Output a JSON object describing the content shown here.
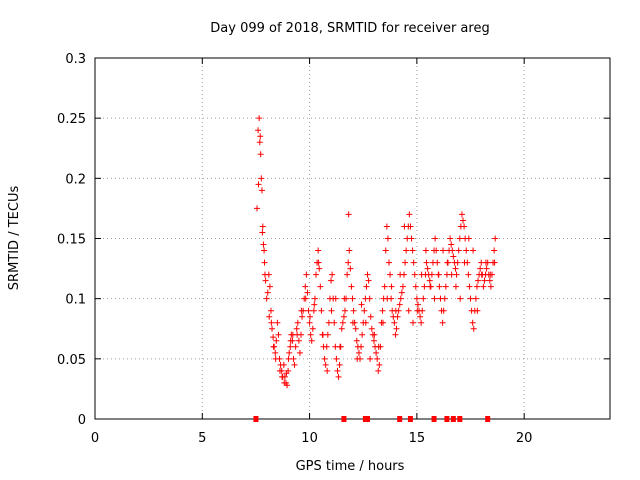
{
  "chart_data": {
    "type": "scatter",
    "title": "Day 099 of 2018, SRMTID for receiver areg",
    "xlabel": "GPS time / hours",
    "ylabel": "SRMTID / TECUs",
    "xlim": [
      0,
      24
    ],
    "ylim": [
      0,
      0.3
    ],
    "xticks": [
      0,
      5,
      10,
      15,
      20
    ],
    "xtick_labels": [
      "0",
      "5",
      "10",
      "15",
      "20"
    ],
    "yticks": [
      0,
      0.05,
      0.1,
      0.15,
      0.2,
      0.25,
      0.3
    ],
    "ytick_labels": [
      "0",
      "0.05",
      "0.1",
      "0.15",
      "0.2",
      "0.25",
      "0.3"
    ],
    "grid": true,
    "marker": "+",
    "color": "#ff0000",
    "series": [
      {
        "name": "SRMTID",
        "x": [
          7.55,
          7.6,
          7.65,
          7.7,
          7.75,
          7.8,
          7.85,
          7.9,
          7.95,
          8.0,
          8.05,
          8.1,
          8.15,
          8.2,
          8.25,
          8.3,
          8.35,
          8.4,
          8.45,
          8.5,
          8.55,
          8.6,
          8.65,
          8.7,
          8.75,
          8.8,
          8.85,
          8.9,
          8.95,
          9.0,
          9.05,
          9.1,
          9.15,
          9.2,
          9.25,
          9.3,
          9.35,
          9.4,
          9.45,
          9.5,
          9.55,
          9.6,
          9.65,
          9.7,
          9.75,
          9.8,
          9.85,
          9.9,
          9.95,
          10.0,
          10.05,
          10.1,
          10.15,
          10.2,
          10.25,
          10.3,
          10.35,
          10.4,
          10.45,
          10.5,
          10.55,
          10.6,
          10.65,
          10.7,
          10.75,
          10.8,
          10.85,
          10.9,
          10.95,
          11.0,
          11.05,
          11.1,
          11.15,
          11.2,
          11.25,
          11.3,
          11.35,
          11.4,
          11.45,
          11.5,
          11.55,
          11.6,
          11.65,
          11.7,
          11.75,
          11.8,
          11.85,
          11.9,
          11.95,
          12.0,
          12.05,
          12.1,
          12.15,
          12.2,
          12.25,
          12.3,
          12.35,
          12.4,
          12.45,
          12.5,
          12.55,
          12.6,
          12.65,
          12.7,
          12.75,
          12.8,
          12.85,
          12.9,
          12.95,
          13.0,
          13.05,
          13.1,
          13.15,
          13.2,
          13.25,
          13.3,
          13.35,
          13.4,
          13.45,
          13.5,
          13.55,
          13.6,
          13.65,
          13.7,
          13.75,
          13.8,
          13.85,
          13.9,
          13.95,
          14.0,
          14.05,
          14.1,
          14.15,
          14.2,
          14.25,
          14.3,
          14.35,
          14.4,
          14.45,
          14.5,
          14.55,
          14.6,
          14.65,
          14.7,
          14.75,
          14.8,
          14.85,
          14.9,
          14.95,
          15.0,
          15.05,
          15.1,
          15.15,
          15.2,
          15.25,
          15.3,
          15.35,
          15.4,
          15.45,
          15.5,
          15.55,
          15.6,
          15.65,
          15.7,
          15.75,
          15.8,
          15.85,
          15.9,
          15.95,
          16.0,
          16.05,
          16.1,
          16.15,
          16.2,
          16.25,
          16.3,
          16.35,
          16.4,
          16.45,
          16.5,
          16.55,
          16.6,
          16.65,
          16.7,
          16.75,
          16.8,
          16.85,
          16.9,
          16.95,
          17.0,
          17.05,
          17.1,
          17.15,
          17.2,
          17.25,
          17.3,
          17.35,
          17.4,
          17.45,
          17.5,
          17.55,
          17.6,
          17.65,
          17.7,
          17.75,
          17.8,
          17.85,
          17.9,
          17.95,
          18.0,
          18.05,
          18.1,
          18.15,
          18.2,
          18.25,
          18.3,
          18.35,
          18.4,
          18.45,
          18.5,
          18.55,
          18.6,
          18.65,
          7.62,
          7.68,
          7.72,
          7.78,
          7.82,
          7.88,
          7.92,
          8.12,
          8.22,
          8.32,
          8.42,
          8.62,
          8.72,
          8.82,
          8.92,
          9.02,
          9.12,
          9.22,
          9.42,
          9.62,
          9.82,
          10.02,
          10.22,
          10.42,
          10.62,
          10.82,
          11.02,
          11.22,
          11.42,
          11.62,
          11.82,
          12.02,
          12.22,
          12.42,
          12.62,
          12.82,
          13.02,
          13.22,
          13.42,
          13.62,
          13.82,
          14.02,
          14.22,
          14.42,
          14.62,
          14.82,
          15.02,
          15.22,
          15.42,
          15.62,
          15.82,
          16.02,
          16.22,
          16.42,
          16.62,
          16.82,
          17.02,
          17.22,
          17.42,
          17.62,
          17.82,
          18.02,
          18.22,
          18.42,
          18.62
        ],
        "y": [
          0.175,
          0.24,
          0.25,
          0.235,
          0.2,
          0.155,
          0.145,
          0.13,
          0.115,
          0.1,
          0.105,
          0.12,
          0.11,
          0.09,
          0.075,
          0.068,
          0.06,
          0.055,
          0.065,
          0.08,
          0.07,
          0.05,
          0.045,
          0.04,
          0.035,
          0.045,
          0.035,
          0.03,
          0.028,
          0.04,
          0.055,
          0.06,
          0.07,
          0.065,
          0.05,
          0.045,
          0.06,
          0.075,
          0.08,
          0.065,
          0.055,
          0.07,
          0.085,
          0.09,
          0.1,
          0.11,
          0.12,
          0.105,
          0.09,
          0.08,
          0.07,
          0.065,
          0.075,
          0.09,
          0.1,
          0.12,
          0.13,
          0.14,
          0.125,
          0.11,
          0.09,
          0.07,
          0.06,
          0.05,
          0.045,
          0.06,
          0.07,
          0.08,
          0.1,
          0.115,
          0.12,
          0.1,
          0.08,
          0.06,
          0.05,
          0.04,
          0.035,
          0.045,
          0.06,
          0.075,
          0.08,
          0.085,
          0.09,
          0.1,
          0.12,
          0.13,
          0.14,
          0.125,
          0.11,
          0.1,
          0.09,
          0.08,
          0.075,
          0.065,
          0.06,
          0.055,
          0.05,
          0.06,
          0.07,
          0.08,
          0.09,
          0.1,
          0.11,
          0.12,
          0.115,
          0.1,
          0.085,
          0.075,
          0.07,
          0.065,
          0.06,
          0.055,
          0.05,
          0.04,
          0.045,
          0.06,
          0.08,
          0.09,
          0.1,
          0.11,
          0.14,
          0.16,
          0.15,
          0.13,
          0.12,
          0.1,
          0.09,
          0.085,
          0.08,
          0.07,
          0.075,
          0.085,
          0.09,
          0.095,
          0.1,
          0.105,
          0.11,
          0.12,
          0.13,
          0.14,
          0.15,
          0.16,
          0.17,
          0.16,
          0.15,
          0.14,
          0.13,
          0.12,
          0.11,
          0.1,
          0.095,
          0.09,
          0.085,
          0.08,
          0.09,
          0.1,
          0.11,
          0.12,
          0.13,
          0.125,
          0.12,
          0.115,
          0.11,
          0.12,
          0.13,
          0.14,
          0.15,
          0.14,
          0.13,
          0.12,
          0.11,
          0.1,
          0.09,
          0.08,
          0.09,
          0.1,
          0.11,
          0.12,
          0.13,
          0.14,
          0.15,
          0.145,
          0.14,
          0.135,
          0.13,
          0.125,
          0.12,
          0.13,
          0.14,
          0.15,
          0.16,
          0.17,
          0.165,
          0.16,
          0.15,
          0.14,
          0.13,
          0.12,
          0.11,
          0.1,
          0.09,
          0.08,
          0.075,
          0.09,
          0.1,
          0.11,
          0.115,
          0.12,
          0.125,
          0.13,
          0.12,
          0.11,
          0.115,
          0.12,
          0.125,
          0.13,
          0.12,
          0.115,
          0.11,
          0.12,
          0.13,
          0.14,
          0.15,
          0.195,
          0.23,
          0.22,
          0.19,
          0.16,
          0.14,
          0.12,
          0.085,
          0.08,
          0.06,
          0.05,
          0.04,
          0.035,
          0.03,
          0.038,
          0.05,
          0.065,
          0.07,
          0.07,
          0.09,
          0.1,
          0.085,
          0.095,
          0.13,
          0.07,
          0.04,
          0.09,
          0.1,
          0.06,
          0.1,
          0.17,
          0.08,
          0.05,
          0.095,
          0.08,
          0.05,
          0.07,
          0.06,
          0.08,
          0.1,
          0.11,
          0.09,
          0.12,
          0.16,
          0.09,
          0.08,
          0.09,
          0.12,
          0.14,
          0.11,
          0.1,
          0.12,
          0.14,
          0.13,
          0.12,
          0.11,
          0.1,
          0.13,
          0.15,
          0.14,
          0.09,
          0.12,
          0.13,
          0.12,
          0.13
        ]
      }
    ],
    "data_gaps_x": [
      7.5,
      11.6,
      12.6,
      12.7,
      14.2,
      14.7,
      15.8,
      16.4,
      16.7,
      17.0,
      18.3
    ]
  }
}
